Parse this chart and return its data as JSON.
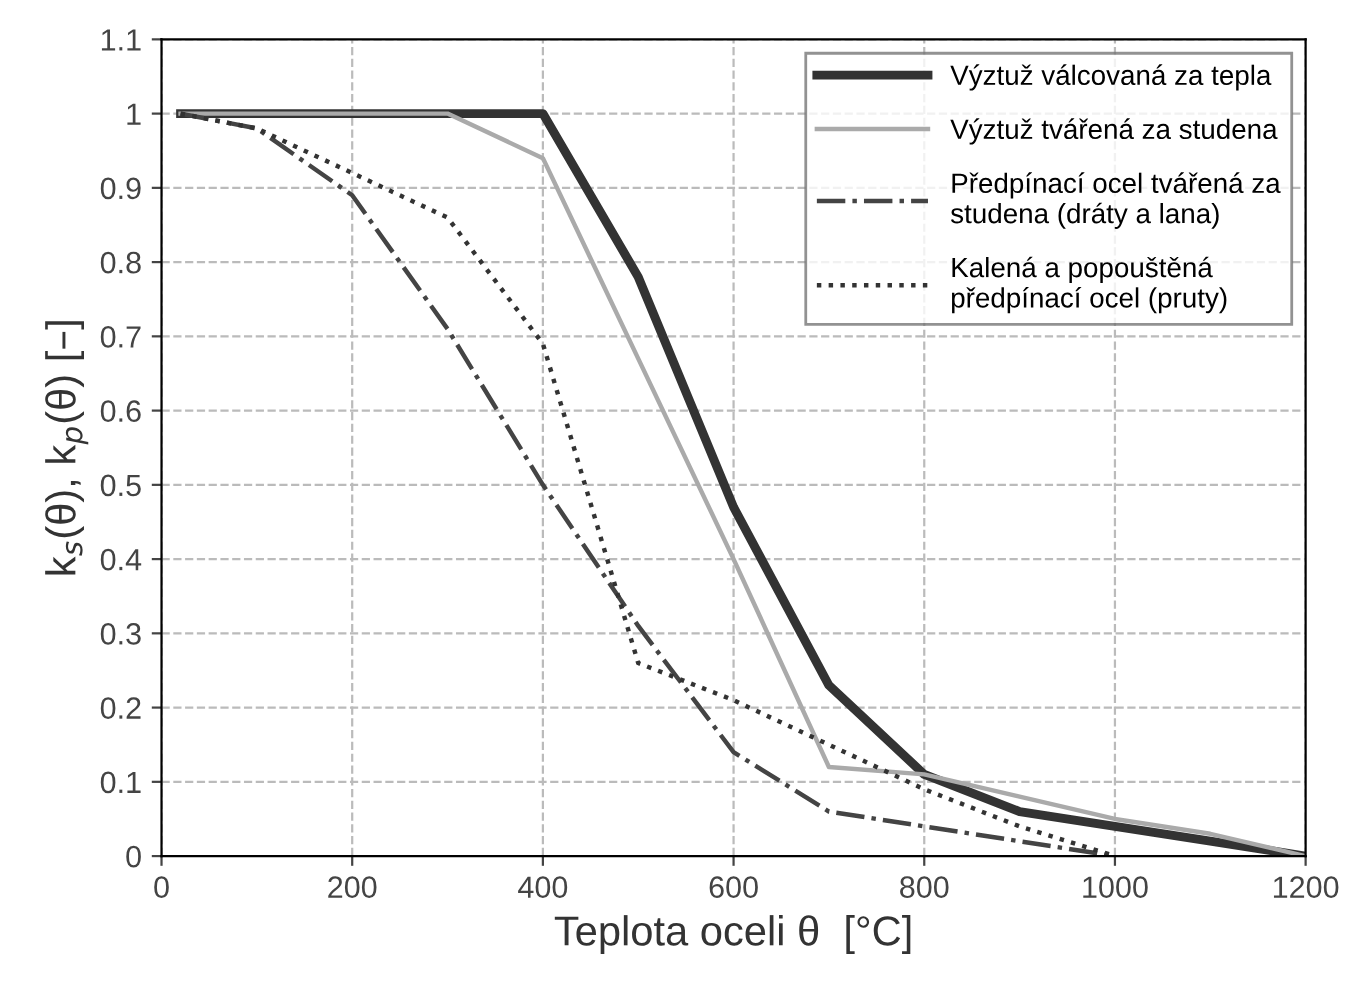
{
  "chart_data": {
    "type": "line",
    "xlabel": "Teplota oceli θ  [°C]",
    "ylabel": "k$_{s}$(θ), k$_{p}$(θ) [–]",
    "xlim": [
      0,
      1200
    ],
    "xticks": [
      0,
      200,
      400,
      600,
      800,
      1000,
      1200
    ],
    "ylim": [
      0,
      1.1
    ],
    "yticks": [
      0,
      0.1,
      0.2,
      0.3,
      0.4,
      0.5,
      0.6,
      0.7,
      0.8,
      0.9,
      1,
      1.1
    ],
    "grid": true,
    "legend": "top right",
    "marker": "none",
    "series": [
      {
        "name": "Výztuž válcovaná za tepla",
        "color": "#333333",
        "line_style": "solid",
        "x": [
          20,
          100,
          200,
          300,
          400,
          500,
          600,
          700,
          800,
          900,
          1000,
          1100,
          1200
        ],
        "values": [
          1,
          1,
          1,
          1,
          1,
          0.78,
          0.47,
          0.23,
          0.11,
          0.06,
          0.04,
          0.02,
          0
        ]
      },
      {
        "name": "Výztuž tvářená za studena",
        "color": "#aaaaaa",
        "line_style": "solid",
        "x": [
          20,
          100,
          200,
          300,
          400,
          500,
          600,
          700,
          800,
          900,
          1000,
          1100,
          1200
        ],
        "values": [
          1,
          1,
          1,
          1,
          0.94,
          0.67,
          0.4,
          0.12,
          0.11,
          0.08,
          0.05,
          0.03,
          0
        ]
      },
      {
        "name": "Předpínací ocel tvářená za\nstudena (dráty a lana)",
        "color": "#444444",
        "line_style": "dashdot",
        "x": [
          20,
          100,
          200,
          300,
          400,
          500,
          600,
          700,
          800,
          900,
          1000
        ],
        "values": [
          1,
          0.98,
          0.89,
          0.71,
          0.5,
          0.31,
          0.14,
          0.06,
          0.04,
          0.02,
          0
        ]
      },
      {
        "name": "Kalená a popouštěná\npředpínací ocel (pruty)",
        "color": "#333333",
        "line_style": "dotted",
        "x": [
          20,
          100,
          200,
          300,
          400,
          500,
          600,
          700,
          800,
          900,
          1000
        ],
        "values": [
          1,
          0.98,
          0.92,
          0.86,
          0.69,
          0.26,
          0.21,
          0.15,
          0.09,
          0.04,
          0
        ]
      }
    ]
  }
}
